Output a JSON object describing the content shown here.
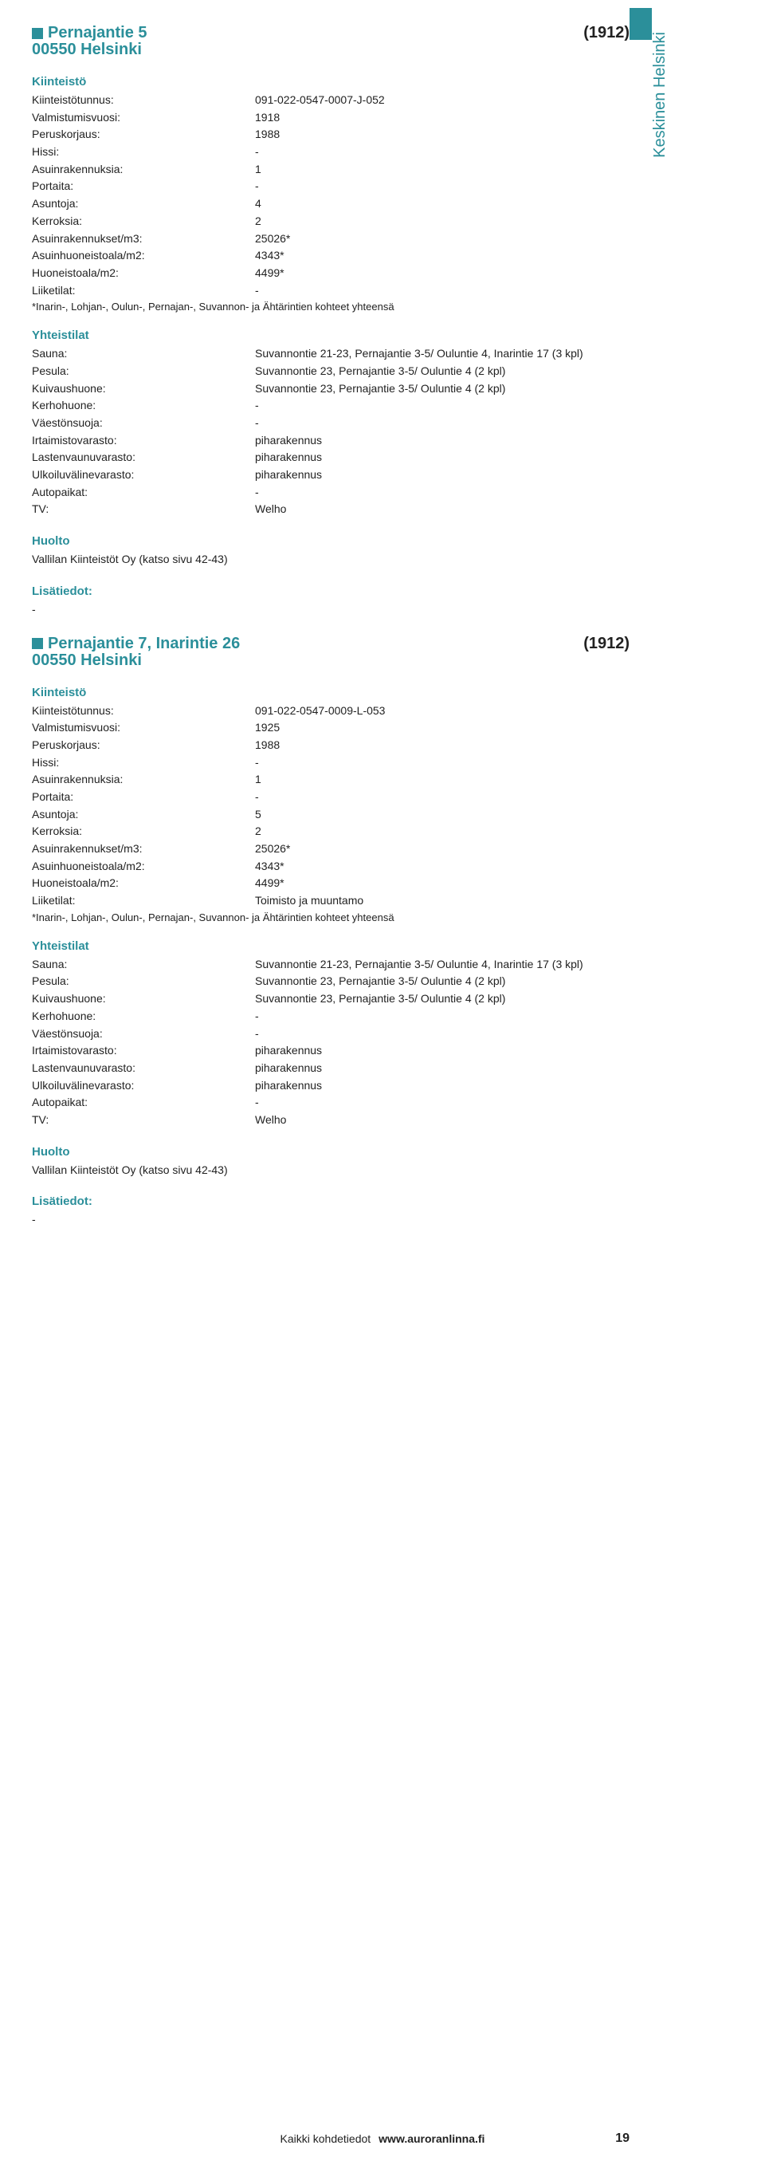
{
  "side_label": "Keskinen Helsinki",
  "properties": [
    {
      "title": "Pernajantie 5",
      "code": "(1912)",
      "city": "00550 Helsinki",
      "kiinteisto": [
        {
          "label": "Kiinteistötunnus:",
          "value": "091-022-0547-0007-J-052"
        },
        {
          "label": "Valmistumisvuosi:",
          "value": "1918"
        },
        {
          "label": "Peruskorjaus:",
          "value": "1988"
        },
        {
          "label": "Hissi:",
          "value": "-"
        },
        {
          "label": "Asuinrakennuksia:",
          "value": "1"
        },
        {
          "label": "Portaita:",
          "value": "-"
        },
        {
          "label": "Asuntoja:",
          "value": "4"
        },
        {
          "label": "Kerroksia:",
          "value": "2"
        },
        {
          "label": "Asuinrakennukset/m3:",
          "value": "25026*"
        },
        {
          "label": "Asuinhuoneistoala/m2:",
          "value": "4343*"
        },
        {
          "label": "Huoneistoala/m2:",
          "value": "4499*"
        },
        {
          "label": "Liiketilat:",
          "value": "-"
        }
      ],
      "note": "*Inarin-, Lohjan-, Oulun-, Pernajan-, Suvannon- ja Ähtärintien kohteet yhteensä",
      "yhteistilat": [
        {
          "label": "Sauna:",
          "value": "Suvannontie 21-23, Pernajantie 3-5/ Ouluntie 4, Inarintie 17 (3 kpl)"
        },
        {
          "label": "Pesula:",
          "value": "Suvannontie 23, Pernajantie 3-5/ Ouluntie 4 (2 kpl)"
        },
        {
          "label": "Kuivaushuone:",
          "value": "Suvannontie 23, Pernajantie 3-5/ Ouluntie 4 (2 kpl)"
        },
        {
          "label": "Kerhohuone:",
          "value": "-"
        },
        {
          "label": "Väestönsuoja:",
          "value": "-"
        },
        {
          "label": "Irtaimistovarasto:",
          "value": "piharakennus"
        },
        {
          "label": "Lastenvaunuvarasto:",
          "value": "piharakennus"
        },
        {
          "label": "Ulkoiluvälinevarasto:",
          "value": "piharakennus"
        },
        {
          "label": "Autopaikat:",
          "value": "-"
        },
        {
          "label": "TV:",
          "value": "Welho"
        }
      ],
      "huolto": "Vallilan Kiinteistöt Oy (katso sivu 42-43)",
      "lisatiedot": "-"
    },
    {
      "title": "Pernajantie 7, Inarintie 26",
      "code": "(1912)",
      "city": "00550 Helsinki",
      "kiinteisto": [
        {
          "label": "Kiinteistötunnus:",
          "value": "091-022-0547-0009-L-053"
        },
        {
          "label": "Valmistumisvuosi:",
          "value": "1925"
        },
        {
          "label": "Peruskorjaus:",
          "value": "1988"
        },
        {
          "label": "Hissi:",
          "value": "-"
        },
        {
          "label": "Asuinrakennuksia:",
          "value": "1"
        },
        {
          "label": "Portaita:",
          "value": "-"
        },
        {
          "label": "Asuntoja:",
          "value": "5"
        },
        {
          "label": "Kerroksia:",
          "value": "2"
        },
        {
          "label": "Asuinrakennukset/m3:",
          "value": "25026*"
        },
        {
          "label": "Asuinhuoneistoala/m2:",
          "value": "4343*"
        },
        {
          "label": "Huoneistoala/m2:",
          "value": "4499*"
        },
        {
          "label": "Liiketilat:",
          "value": "Toimisto ja muuntamo"
        }
      ],
      "note": "*Inarin-, Lohjan-, Oulun-, Pernajan-, Suvannon- ja Ähtärintien kohteet yhteensä",
      "yhteistilat": [
        {
          "label": "Sauna:",
          "value": "Suvannontie 21-23, Pernajantie 3-5/ Ouluntie 4, Inarintie 17 (3 kpl)"
        },
        {
          "label": "Pesula:",
          "value": "Suvannontie 23, Pernajantie 3-5/ Ouluntie 4 (2 kpl)"
        },
        {
          "label": "Kuivaushuone:",
          "value": "Suvannontie 23, Pernajantie 3-5/ Ouluntie 4 (2 kpl)"
        },
        {
          "label": "Kerhohuone:",
          "value": "-"
        },
        {
          "label": "Väestönsuoja:",
          "value": "-"
        },
        {
          "label": "Irtaimistovarasto:",
          "value": "piharakennus"
        },
        {
          "label": "Lastenvaunuvarasto:",
          "value": "piharakennus"
        },
        {
          "label": "Ulkoiluvälinevarasto:",
          "value": "piharakennus"
        },
        {
          "label": "Autopaikat:",
          "value": "-"
        },
        {
          "label": "TV:",
          "value": "Welho"
        }
      ],
      "huolto": "Vallilan Kiinteistöt Oy (katso sivu 42-43)",
      "lisatiedot": "-"
    }
  ],
  "headings": {
    "kiinteisto": "Kiinteistö",
    "yhteistilat": "Yhteistilat",
    "huolto": "Huolto",
    "lisatiedot": "Lisätiedot:"
  },
  "footer": {
    "text": "Kaikki kohdetiedot",
    "url": "www.auroranlinna.fi",
    "page": "19"
  }
}
